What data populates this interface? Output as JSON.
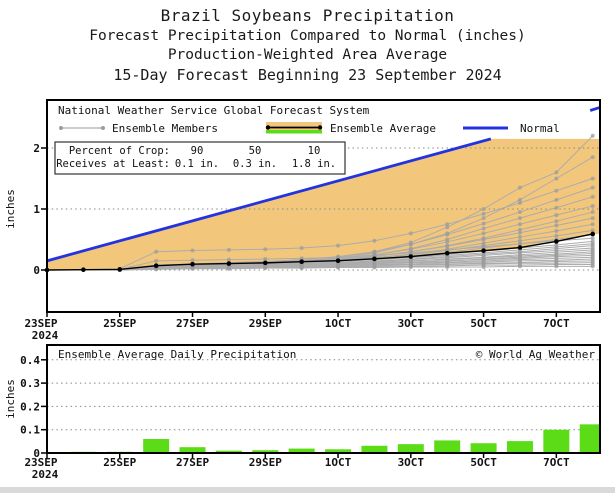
{
  "header": {
    "title": "Brazil Soybeans Precipitation",
    "subtitle1": "Forecast Precipitation Compared to Normal (inches)",
    "subtitle2": "Production-Weighted Area Average",
    "subtitle3": "15-Day Forecast Beginning 23 September 2024"
  },
  "x_axis": {
    "days_total": 15.2,
    "year_label": "2024",
    "ticks": [
      {
        "day": 0,
        "label": "23SEP"
      },
      {
        "day": 2,
        "label": "25SEP"
      },
      {
        "day": 4,
        "label": "27SEP"
      },
      {
        "day": 6,
        "label": "29SEP"
      },
      {
        "day": 8,
        "label": "1OCT"
      },
      {
        "day": 10,
        "label": "3OCT"
      },
      {
        "day": 12,
        "label": "5OCT"
      },
      {
        "day": 14,
        "label": "7OCT"
      }
    ]
  },
  "chart_data": [
    {
      "type": "line",
      "name": "cumulative-precipitation-forecast",
      "ylabel": "inches",
      "yticks": [
        0,
        1,
        2
      ],
      "ylim": [
        -0.7,
        2.8
      ],
      "legend": {
        "source": "National Weather Service Global Forecast System",
        "members_label": "Ensemble Members",
        "average_label": "Ensemble Average",
        "normal_label": "Normal"
      },
      "info_box": {
        "rows": [
          {
            "label": "Percent of Crop:",
            "values": [
              "90",
              "50",
              "10"
            ]
          },
          {
            "label": "Receives at Least:",
            "values": [
              "0.1 in.",
              "0.3 in.",
              "1.8 in."
            ]
          }
        ]
      },
      "normal_line": {
        "start_day": 0,
        "start": 0.15,
        "end_day": 12.2,
        "end": 2.15,
        "cap": 2.15,
        "edge_segment": [
          [
            14.93,
            2.615
          ],
          [
            15.2,
            2.665
          ]
        ]
      },
      "ensemble_average": [
        0,
        0.005,
        0.01,
        0.07,
        0.095,
        0.105,
        0.117,
        0.136,
        0.152,
        0.183,
        0.221,
        0.275,
        0.317,
        0.368,
        0.468,
        0.591
      ],
      "ensemble_members": [
        [
          0,
          0,
          0.01,
          0.05,
          0.08,
          0.1,
          0.12,
          0.15,
          0.2,
          0.3,
          0.45,
          0.7,
          1.0,
          1.35,
          1.6,
          2.2
        ],
        [
          0,
          0,
          0,
          0.03,
          0.05,
          0.07,
          0.09,
          0.12,
          0.18,
          0.28,
          0.42,
          0.6,
          0.85,
          1.15,
          1.5,
          1.85
        ],
        [
          0,
          0,
          0.02,
          0.3,
          0.32,
          0.33,
          0.34,
          0.36,
          0.4,
          0.48,
          0.6,
          0.75,
          0.92,
          1.1,
          1.3,
          1.5
        ],
        [
          0,
          0,
          0.01,
          0.08,
          0.1,
          0.12,
          0.14,
          0.17,
          0.22,
          0.3,
          0.42,
          0.58,
          0.76,
          0.95,
          1.15,
          1.35
        ],
        [
          0,
          0,
          0,
          0.05,
          0.07,
          0.09,
          0.11,
          0.14,
          0.18,
          0.25,
          0.35,
          0.5,
          0.68,
          0.85,
          1.02,
          1.2
        ],
        [
          0,
          0,
          0.01,
          0.06,
          0.08,
          0.1,
          0.12,
          0.15,
          0.19,
          0.25,
          0.34,
          0.46,
          0.6,
          0.75,
          0.9,
          1.05
        ],
        [
          0,
          0,
          0,
          0.04,
          0.06,
          0.08,
          0.1,
          0.12,
          0.16,
          0.22,
          0.3,
          0.4,
          0.52,
          0.66,
          0.8,
          0.95
        ],
        [
          0,
          0,
          0.01,
          0.07,
          0.09,
          0.11,
          0.13,
          0.15,
          0.18,
          0.23,
          0.3,
          0.39,
          0.5,
          0.61,
          0.73,
          0.85
        ],
        [
          0,
          0,
          0,
          0.05,
          0.07,
          0.09,
          0.1,
          0.12,
          0.15,
          0.2,
          0.26,
          0.34,
          0.44,
          0.54,
          0.64,
          0.75
        ],
        [
          0,
          0,
          0.01,
          0.06,
          0.08,
          0.09,
          0.11,
          0.13,
          0.16,
          0.2,
          0.25,
          0.32,
          0.4,
          0.48,
          0.56,
          0.65
        ],
        [
          0,
          0,
          0,
          0.04,
          0.06,
          0.08,
          0.09,
          0.11,
          0.14,
          0.18,
          0.23,
          0.29,
          0.36,
          0.43,
          0.5,
          0.58
        ],
        [
          0,
          0,
          0.01,
          0.15,
          0.16,
          0.17,
          0.18,
          0.19,
          0.21,
          0.24,
          0.28,
          0.33,
          0.38,
          0.43,
          0.48,
          0.52
        ],
        [
          0,
          0,
          0,
          0.05,
          0.07,
          0.08,
          0.1,
          0.12,
          0.14,
          0.17,
          0.21,
          0.26,
          0.31,
          0.36,
          0.41,
          0.47
        ],
        [
          0,
          0,
          0.01,
          0.06,
          0.08,
          0.09,
          0.1,
          0.12,
          0.14,
          0.17,
          0.2,
          0.24,
          0.28,
          0.33,
          0.38,
          0.43
        ],
        [
          0,
          0,
          0,
          0.04,
          0.05,
          0.07,
          0.08,
          0.1,
          0.12,
          0.15,
          0.18,
          0.22,
          0.26,
          0.3,
          0.35,
          0.4
        ],
        [
          0,
          0,
          0.01,
          0.05,
          0.06,
          0.08,
          0.09,
          0.1,
          0.12,
          0.14,
          0.17,
          0.2,
          0.24,
          0.28,
          0.32,
          0.36
        ],
        [
          0,
          0,
          0,
          0.03,
          0.05,
          0.06,
          0.08,
          0.09,
          0.11,
          0.13,
          0.15,
          0.18,
          0.21,
          0.25,
          0.29,
          0.33
        ],
        [
          0,
          0,
          0.01,
          0.04,
          0.05,
          0.07,
          0.08,
          0.09,
          0.11,
          0.13,
          0.15,
          0.17,
          0.2,
          0.23,
          0.26,
          0.3
        ],
        [
          0,
          0,
          0,
          0.03,
          0.04,
          0.06,
          0.07,
          0.08,
          0.1,
          0.11,
          0.13,
          0.15,
          0.18,
          0.21,
          0.24,
          0.27
        ],
        [
          0,
          0,
          0.01,
          0.05,
          0.06,
          0.07,
          0.08,
          0.09,
          0.1,
          0.12,
          0.13,
          0.15,
          0.17,
          0.19,
          0.22,
          0.24
        ],
        [
          0,
          0,
          0,
          0.04,
          0.05,
          0.06,
          0.07,
          0.08,
          0.09,
          0.1,
          0.12,
          0.13,
          0.15,
          0.17,
          0.19,
          0.21
        ],
        [
          0,
          0,
          0.01,
          0.03,
          0.04,
          0.05,
          0.06,
          0.07,
          0.08,
          0.09,
          0.1,
          0.12,
          0.13,
          0.15,
          0.16,
          0.18
        ],
        [
          0,
          0,
          0,
          0.03,
          0.04,
          0.05,
          0.06,
          0.06,
          0.07,
          0.08,
          0.09,
          0.1,
          0.11,
          0.12,
          0.14,
          0.15
        ],
        [
          0,
          0,
          0.01,
          0.02,
          0.03,
          0.04,
          0.05,
          0.05,
          0.06,
          0.07,
          0.08,
          0.09,
          0.1,
          0.11,
          0.11,
          0.12
        ],
        [
          0,
          0,
          0,
          0.02,
          0.03,
          0.03,
          0.04,
          0.04,
          0.05,
          0.06,
          0.06,
          0.07,
          0.08,
          0.08,
          0.09,
          0.09
        ],
        [
          0,
          0,
          0,
          0.01,
          0.02,
          0.02,
          0.03,
          0.03,
          0.04,
          0.04,
          0.05,
          0.05,
          0.05,
          0.06,
          0.06,
          0.06
        ]
      ],
      "colors": {
        "normal": "#2333E0",
        "deficit_fill": "#F2C77C",
        "average": "#000000",
        "members": "#ACACAC",
        "member_dots": "#9C9C9C",
        "surplus_green": "#5BDC17",
        "grid": "#888888"
      }
    },
    {
      "type": "bar",
      "name": "daily-precipitation",
      "title": "Ensemble Average Daily Precipitation",
      "credit": "© World Ag Weather",
      "ylabel": "inches",
      "yticks": [
        0,
        0.1,
        0.2,
        0.3,
        0.4
      ],
      "ytick_labels": [
        "0",
        "0.1",
        "0.2",
        "0.3",
        "0.4"
      ],
      "ylim": [
        0,
        0.465
      ],
      "values": [
        0,
        0.005,
        0.005,
        0.06,
        0.025,
        0.01,
        0.012,
        0.019,
        0.016,
        0.031,
        0.038,
        0.054,
        0.042,
        0.051,
        0.1,
        0.123
      ],
      "bar_color": "#5BDC17"
    }
  ]
}
